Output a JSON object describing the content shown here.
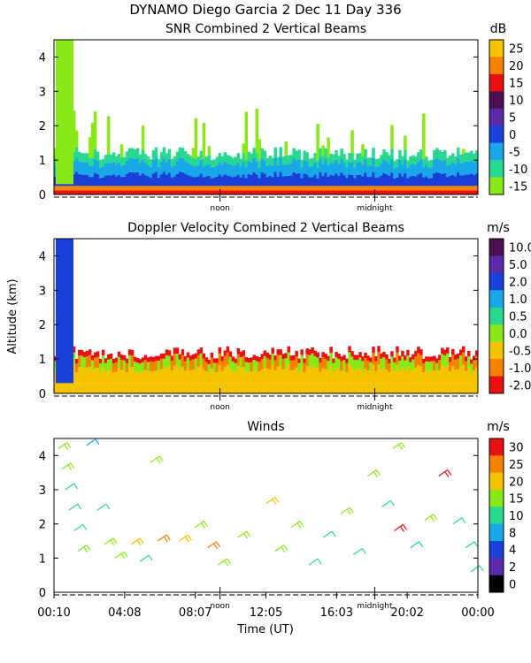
{
  "header": {
    "title_line1": "DYNAMO Diego Garcia    2 Dec 11 Day 336"
  },
  "shared_axes": {
    "ylabel": "Altitude (km)",
    "xlabel": "Time (UT)",
    "x_tick_labels": [
      "00:10",
      "04:08",
      "08:07",
      "12:05",
      "16:03",
      "20:02",
      "00:00"
    ],
    "x_range_hours": [
      0.167,
      24.0
    ],
    "noon_label": "noon",
    "midnight_label": "midnight",
    "noon_hour": 9.5,
    "midnight_hour": 18.2
  },
  "chart_data": [
    {
      "type": "heatmap",
      "title": "SNR Combined 2 Vertical Beams",
      "xlabel": "",
      "ylabel": "",
      "ylim": [
        0,
        4.5
      ],
      "y_ticks": [
        "0",
        "1",
        "2",
        "3",
        "4"
      ],
      "y_tick_values": [
        0,
        1,
        2,
        3,
        4
      ],
      "colorbar": {
        "unit": "dB",
        "ticks": [
          "25",
          "20",
          "15",
          "10",
          "5",
          "0",
          "-5",
          "-10",
          "-15"
        ],
        "colors": [
          "#f5c400",
          "#f58200",
          "#e81010",
          "#4a1050",
          "#5a2aa8",
          "#1840d8",
          "#18a8e8",
          "#28d890",
          "#88e818"
        ]
      },
      "layers": [
        {
          "name": "surface strong echo",
          "alt_km": [
            0,
            0.25
          ],
          "level_dB": 15
        },
        {
          "name": "boundary layer",
          "alt_km": [
            0.25,
            0.6
          ],
          "level_dB": 0
        },
        {
          "name": "mixed layer",
          "alt_km": [
            0.6,
            1.1
          ],
          "level_dB": -8
        },
        {
          "name": "weak echoes",
          "alt_km": [
            1.1,
            2.4
          ],
          "level_dB": -14
        }
      ]
    },
    {
      "type": "heatmap",
      "title": "Doppler Velocity Combined 2 Vertical Beams",
      "xlabel": "",
      "ylabel": "Altitude (km)",
      "ylim": [
        0,
        4.5
      ],
      "y_ticks": [
        "0",
        "1",
        "2",
        "3",
        "4"
      ],
      "y_tick_values": [
        0,
        1,
        2,
        3,
        4
      ],
      "colorbar": {
        "unit": "m/s",
        "ticks": [
          "10.0",
          "5.0",
          "2.0",
          "1.0",
          "0.5",
          "0.0",
          "-0.5",
          "-1.0",
          "-2.0"
        ],
        "colors": [
          "#4a1050",
          "#5a2aa8",
          "#1840d8",
          "#18a8e8",
          "#28d890",
          "#88e818",
          "#f5c400",
          "#f58200",
          "#e81010"
        ]
      },
      "layers": [
        {
          "name": "near-surface downdraft",
          "alt_km": [
            0,
            0.6
          ],
          "level_ms": -0.5
        },
        {
          "name": "layer top",
          "alt_km": [
            0.6,
            1.2
          ],
          "level_ms": -1.0
        }
      ]
    },
    {
      "type": "scatter",
      "title": "Winds",
      "xlabel": "Time (UT)",
      "ylabel": "",
      "ylim": [
        0,
        4.5
      ],
      "y_ticks": [
        "0",
        "1",
        "2",
        "3",
        "4"
      ],
      "y_tick_values": [
        0,
        1,
        2,
        3,
        4
      ],
      "colorbar": {
        "unit": "m/s",
        "ticks": [
          "30",
          "25",
          "20",
          "15",
          "10",
          "8",
          "4",
          "2",
          "0"
        ],
        "colors": [
          "#e81010",
          "#f58200",
          "#f5c400",
          "#88e818",
          "#28d890",
          "#18a8e8",
          "#1840d8",
          "#5a2aa8",
          "#000000"
        ]
      },
      "barbs": [
        {
          "t": 0.4,
          "alt": 4.2,
          "speed": 15
        },
        {
          "t": 0.6,
          "alt": 3.6,
          "speed": 15
        },
        {
          "t": 0.8,
          "alt": 3.0,
          "speed": 12
        },
        {
          "t": 1.0,
          "alt": 2.4,
          "speed": 10
        },
        {
          "t": 1.3,
          "alt": 1.8,
          "speed": 12
        },
        {
          "t": 1.5,
          "alt": 1.2,
          "speed": 15
        },
        {
          "t": 2.0,
          "alt": 4.3,
          "speed": 8
        },
        {
          "t": 2.6,
          "alt": 2.4,
          "speed": 10
        },
        {
          "t": 3.0,
          "alt": 1.4,
          "speed": 18
        },
        {
          "t": 3.6,
          "alt": 1.0,
          "speed": 15
        },
        {
          "t": 4.5,
          "alt": 1.4,
          "speed": 20
        },
        {
          "t": 5.0,
          "alt": 0.9,
          "speed": 12
        },
        {
          "t": 5.6,
          "alt": 3.8,
          "speed": 15
        },
        {
          "t": 6.0,
          "alt": 1.5,
          "speed": 25
        },
        {
          "t": 7.2,
          "alt": 1.5,
          "speed": 22
        },
        {
          "t": 8.1,
          "alt": 1.9,
          "speed": 18
        },
        {
          "t": 8.8,
          "alt": 1.3,
          "speed": 25
        },
        {
          "t": 9.4,
          "alt": 0.8,
          "speed": 15
        },
        {
          "t": 10.5,
          "alt": 1.6,
          "speed": 18
        },
        {
          "t": 12.1,
          "alt": 2.6,
          "speed": 20
        },
        {
          "t": 12.6,
          "alt": 1.2,
          "speed": 15
        },
        {
          "t": 13.5,
          "alt": 1.9,
          "speed": 15
        },
        {
          "t": 14.5,
          "alt": 0.8,
          "speed": 12
        },
        {
          "t": 15.3,
          "alt": 1.6,
          "speed": 12
        },
        {
          "t": 16.3,
          "alt": 2.3,
          "speed": 15
        },
        {
          "t": 17.0,
          "alt": 1.1,
          "speed": 10
        },
        {
          "t": 17.8,
          "alt": 3.4,
          "speed": 15
        },
        {
          "t": 18.6,
          "alt": 2.5,
          "speed": 12
        },
        {
          "t": 19.2,
          "alt": 4.2,
          "speed": 15
        },
        {
          "t": 19.3,
          "alt": 1.8,
          "speed": 30
        },
        {
          "t": 20.2,
          "alt": 1.3,
          "speed": 12
        },
        {
          "t": 21.0,
          "alt": 2.1,
          "speed": 15
        },
        {
          "t": 21.8,
          "alt": 3.4,
          "speed": 30
        },
        {
          "t": 22.6,
          "alt": 2.0,
          "speed": 12
        },
        {
          "t": 23.3,
          "alt": 1.3,
          "speed": 10
        },
        {
          "t": 23.6,
          "alt": 0.6,
          "speed": 10
        }
      ]
    }
  ]
}
